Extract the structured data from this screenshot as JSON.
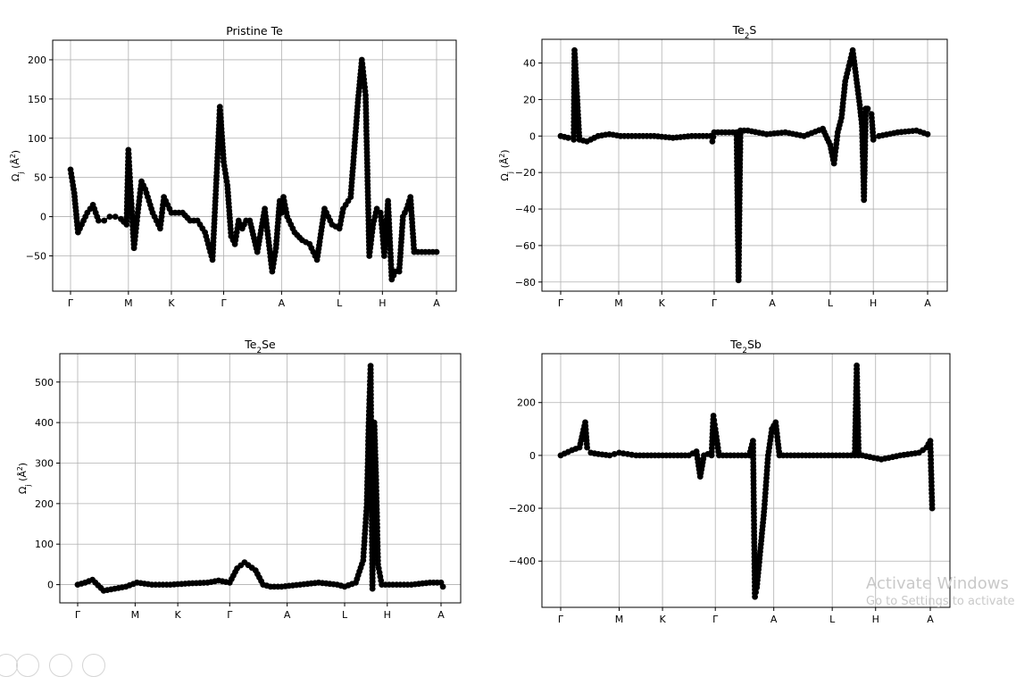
{
  "watermark": {
    "line1": "Activate Windows",
    "line2": "Go to Settings to activate"
  },
  "chart_data": [
    {
      "type": "scatter",
      "title": "Pristine Te",
      "ylabel": "Ω_j (Å²)",
      "ylim": [
        -95,
        225
      ],
      "yticks": [
        -50,
        0,
        50,
        100,
        150,
        200
      ],
      "xticks": [
        "Γ",
        "M",
        "K",
        "Γ",
        "A",
        "L",
        "H",
        "A"
      ],
      "xtick_positions": [
        0,
        0.155,
        0.27,
        0.41,
        0.565,
        0.72,
        0.835,
        0.98
      ],
      "grid": true,
      "series": [
        {
          "x": [
            0,
            0.01,
            0.02,
            0.03,
            0.045,
            0.06,
            0.075,
            0.09,
            0.105,
            0.12,
            0.135,
            0.15,
            0.155,
            0.16,
            0.17,
            0.18,
            0.19,
            0.2,
            0.22,
            0.24,
            0.25,
            0.27,
            0.28,
            0.3,
            0.32,
            0.34,
            0.36,
            0.38,
            0.4,
            0.41,
            0.42,
            0.43,
            0.44,
            0.45,
            0.46,
            0.47,
            0.48,
            0.5,
            0.52,
            0.54,
            0.55,
            0.56,
            0.565,
            0.57,
            0.58,
            0.6,
            0.62,
            0.64,
            0.66,
            0.68,
            0.7,
            0.72,
            0.73,
            0.75,
            0.77,
            0.78,
            0.79,
            0.8,
            0.81,
            0.82,
            0.83,
            0.835,
            0.84,
            0.85,
            0.86,
            0.87,
            0.88,
            0.89,
            0.9,
            0.91,
            0.92,
            0.93,
            0.94,
            0.95,
            0.96,
            0.97,
            0.98
          ],
          "y": [
            60,
            30,
            -20,
            -10,
            5,
            15,
            -5,
            -5,
            0,
            0,
            -3,
            -10,
            85,
            40,
            -40,
            5,
            45,
            35,
            5,
            -15,
            25,
            5,
            5,
            5,
            -5,
            -5,
            -20,
            -55,
            140,
            70,
            40,
            -25,
            -35,
            -5,
            -15,
            -5,
            -5,
            -45,
            10,
            -70,
            -40,
            20,
            5,
            25,
            0,
            -20,
            -30,
            -35,
            -55,
            10,
            -10,
            -15,
            10,
            25,
            150,
            200,
            155,
            -50,
            -10,
            10,
            5,
            -20,
            -50,
            20,
            -80,
            -70,
            -70,
            0,
            10,
            25,
            -45,
            -45,
            -45,
            -45,
            -45,
            -45,
            -45
          ]
        }
      ]
    },
    {
      "type": "scatter",
      "title": "Te₂S",
      "ylabel": "Ω_j (Å²)",
      "ylim": [
        -85,
        53
      ],
      "yticks": [
        -80,
        -60,
        -40,
        -20,
        0,
        20,
        40
      ],
      "xticks": [
        "Γ",
        "M",
        "K",
        "Γ",
        "A",
        "L",
        "H",
        "A"
      ],
      "xtick_positions": [
        0,
        0.155,
        0.27,
        0.41,
        0.565,
        0.72,
        0.835,
        0.98
      ],
      "grid": true,
      "series": [
        {
          "x": [
            0,
            0.02,
            0.035,
            0.037,
            0.05,
            0.07,
            0.1,
            0.13,
            0.16,
            0.2,
            0.25,
            0.3,
            0.35,
            0.4,
            0.405,
            0.41,
            0.45,
            0.47,
            0.475,
            0.48,
            0.5,
            0.55,
            0.6,
            0.65,
            0.7,
            0.72,
            0.73,
            0.74,
            0.75,
            0.76,
            0.78,
            0.8,
            0.805,
            0.81,
            0.815,
            0.82,
            0.83,
            0.835,
            0.85,
            0.9,
            0.95,
            0.98
          ],
          "y": [
            0,
            -1,
            -2,
            47,
            -2,
            -3,
            0,
            1,
            0,
            0,
            0,
            -1,
            0,
            0,
            -3,
            2,
            2,
            2,
            -79,
            3,
            3,
            1,
            2,
            0,
            4,
            -5,
            -15,
            2,
            10,
            30,
            47,
            15,
            5,
            -35,
            15,
            15,
            12,
            -2,
            0,
            2,
            3,
            1
          ]
        }
      ]
    },
    {
      "type": "scatter",
      "title": "Te₂Se",
      "ylabel": "Ω_j (Å²)",
      "ylim": [
        -45,
        570
      ],
      "yticks": [
        0,
        100,
        200,
        300,
        400,
        500
      ],
      "xticks": [
        "Γ",
        "M",
        "K",
        "Γ",
        "A",
        "L",
        "H",
        "A"
      ],
      "xtick_positions": [
        0,
        0.155,
        0.27,
        0.41,
        0.565,
        0.72,
        0.835,
        0.98
      ],
      "grid": true,
      "series": [
        {
          "x": [
            0,
            0.02,
            0.04,
            0.07,
            0.1,
            0.13,
            0.16,
            0.2,
            0.25,
            0.3,
            0.35,
            0.38,
            0.41,
            0.43,
            0.45,
            0.48,
            0.5,
            0.52,
            0.55,
            0.6,
            0.65,
            0.7,
            0.72,
            0.75,
            0.77,
            0.78,
            0.785,
            0.79,
            0.795,
            0.8,
            0.805,
            0.81,
            0.82,
            0.85,
            0.9,
            0.95,
            0.98,
            0.985
          ],
          "y": [
            0,
            5,
            12,
            -15,
            -10,
            -5,
            5,
            0,
            0,
            3,
            5,
            10,
            5,
            40,
            55,
            35,
            0,
            -5,
            -5,
            0,
            5,
            0,
            -5,
            5,
            60,
            200,
            400,
            540,
            -10,
            400,
            250,
            50,
            0,
            0,
            0,
            5,
            5,
            -5
          ]
        }
      ]
    },
    {
      "type": "scatter",
      "title": "Te₂Sb",
      "ylabel": "",
      "ylim": [
        -575,
        385
      ],
      "yticks": [
        -400,
        -200,
        0,
        200
      ],
      "xticks": [
        "Γ",
        "M",
        "K",
        "Γ",
        "A",
        "L",
        "H",
        "A"
      ],
      "xtick_positions": [
        0,
        0.155,
        0.27,
        0.41,
        0.565,
        0.72,
        0.835,
        0.98
      ],
      "grid": true,
      "series": [
        {
          "x": [
            0,
            0.03,
            0.05,
            0.065,
            0.07,
            0.08,
            0.1,
            0.13,
            0.155,
            0.2,
            0.25,
            0.3,
            0.34,
            0.36,
            0.37,
            0.38,
            0.39,
            0.4,
            0.405,
            0.41,
            0.42,
            0.45,
            0.5,
            0.51,
            0.515,
            0.52,
            0.53,
            0.54,
            0.55,
            0.56,
            0.57,
            0.58,
            0.6,
            0.65,
            0.7,
            0.75,
            0.77,
            0.78,
            0.785,
            0.79,
            0.8,
            0.85,
            0.9,
            0.95,
            0.97,
            0.98,
            0.985
          ],
          "y": [
            0,
            20,
            30,
            125,
            30,
            10,
            5,
            0,
            10,
            0,
            0,
            0,
            0,
            15,
            -80,
            0,
            5,
            0,
            150,
            100,
            0,
            0,
            0,
            55,
            -535,
            -500,
            -350,
            -200,
            0,
            100,
            125,
            0,
            0,
            0,
            0,
            0,
            0,
            0,
            340,
            0,
            0,
            -15,
            0,
            10,
            30,
            55,
            -200
          ]
        }
      ]
    }
  ]
}
